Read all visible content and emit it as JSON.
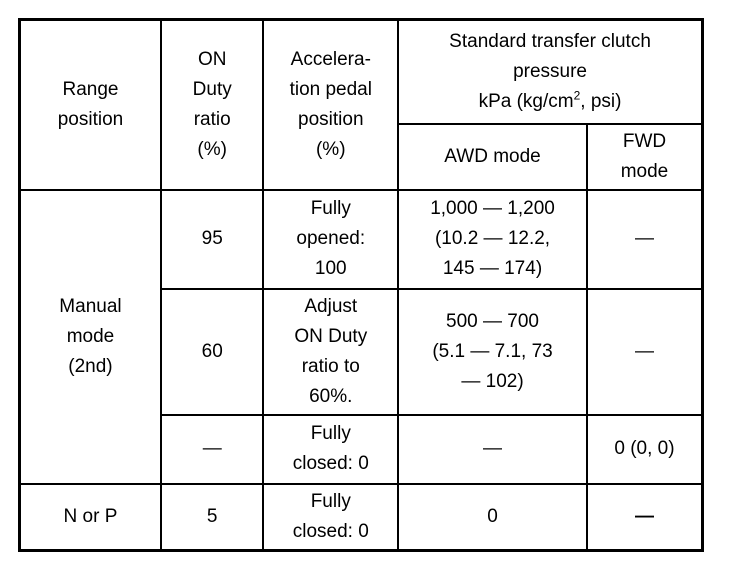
{
  "header": {
    "range_position": [
      "Range",
      "position"
    ],
    "on_duty": [
      "ON",
      "Duty",
      "ratio",
      "(%)"
    ],
    "pedal": [
      "Accelera-",
      "tion pedal",
      "position",
      "(%)"
    ],
    "pressure": {
      "line1": "Standard transfer clutch",
      "line2": "pressure",
      "unit_pre": "kPa (kg/cm",
      "unit_sup": "2",
      "unit_post": ", psi)"
    },
    "awd": "AWD mode",
    "fwd": [
      "FWD",
      "mode"
    ]
  },
  "rows": [
    {
      "range": [
        "Manual",
        "mode",
        "(2nd)"
      ],
      "duty": "95",
      "pedal": [
        "Fully",
        "opened:",
        "100"
      ],
      "awd": [
        "1,000 — 1,200",
        "(10.2 — 12.2,",
        "145 — 174)"
      ],
      "fwd": "—"
    },
    {
      "duty": "60",
      "pedal": [
        "Adjust",
        "ON Duty",
        "ratio to",
        "60%."
      ],
      "awd": [
        "500 — 700",
        "(5.1 — 7.1, 73",
        "— 102)"
      ],
      "fwd": "—"
    },
    {
      "duty": "—",
      "pedal": [
        "Fully",
        "closed: 0"
      ],
      "awd": "—",
      "fwd": "0 (0, 0)"
    },
    {
      "range": "N or P",
      "duty": "5",
      "pedal": [
        "Fully",
        "closed: 0"
      ],
      "awd": "0",
      "fwd": "—"
    }
  ]
}
